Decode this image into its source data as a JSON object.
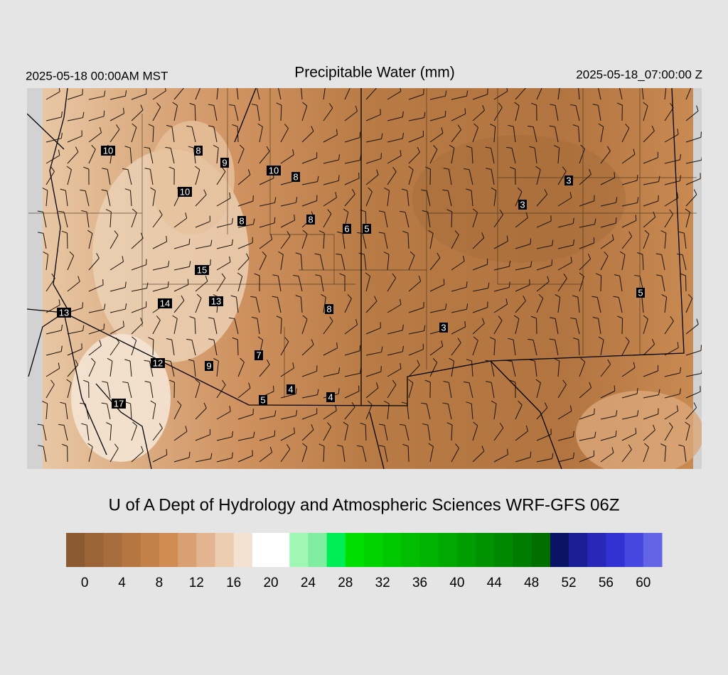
{
  "header": {
    "left": "2025-05-18 00:00AM MST",
    "title": "Precipitable Water (mm)",
    "right": "2025-05-18_07:00:00 Z"
  },
  "station_labels": [
    10,
    8,
    9,
    10,
    8,
    3,
    10,
    3,
    8,
    8,
    6,
    5,
    15,
    5,
    14,
    13,
    13,
    8,
    3,
    7,
    12,
    9,
    4,
    4,
    5,
    17
  ],
  "footer": "U of A Dept of Hydrology and Atmospheric Sciences WRF-GFS 06Z",
  "colorbar": {
    "lim": [
      -2,
      62
    ],
    "ticks": [
      0,
      4,
      8,
      12,
      16,
      20,
      24,
      28,
      32,
      36,
      40,
      44,
      48,
      52,
      56,
      60
    ],
    "colors": [
      "#8c5a32",
      "#9a6437",
      "#a86d3c",
      "#b57642",
      "#c38048",
      "#d08c52",
      "#d9a171",
      "#e2b48f",
      "#ebccaf",
      "#f3e2d2",
      "#ffffff",
      "#ffffff",
      "#a0f7b4",
      "#80eea0",
      "#00ee55",
      "#00dd00",
      "#00d300",
      "#00c800",
      "#00bd00",
      "#00b300",
      "#00a800",
      "#009d00",
      "#009200",
      "#008800",
      "#007d00",
      "#006f00",
      "#0a1464",
      "#1a1e96",
      "#2828b8",
      "#3232d2",
      "#4646e0",
      "#6464e6"
    ]
  }
}
